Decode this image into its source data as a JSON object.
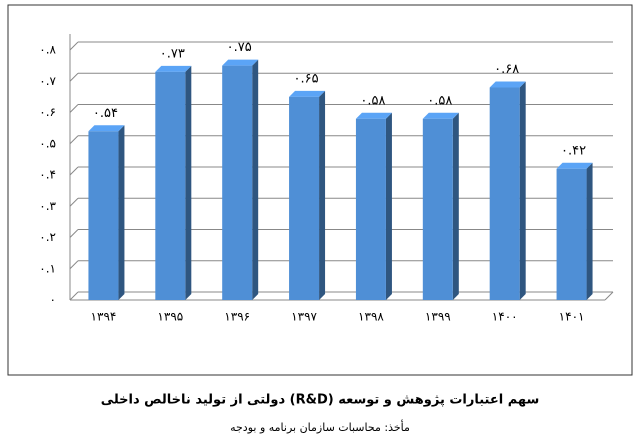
{
  "chart_data": {
    "type": "bar",
    "title": "سهم اعتبارات پژوهش و توسعه (R&D) دولتی از تولید ناخالص داخلی",
    "source": "مأخذ: محاسبات سازمان برنامه و بودجه",
    "categories": [
      "۱۳۹۴",
      "۱۳۹۵",
      "۱۳۹۶",
      "۱۳۹۷",
      "۱۳۹۸",
      "۱۳۹۹",
      "۱۴۰۰",
      "۱۴۰۱"
    ],
    "values": [
      0.54,
      0.73,
      0.75,
      0.65,
      0.58,
      0.58,
      0.68,
      0.42
    ],
    "value_labels": [
      "۰.۵۴",
      "۰.۷۳",
      "۰.۷۵",
      "۰.۶۵",
      "۰.۵۸",
      "۰.۵۸",
      "۰.۶۸",
      "۰.۴۲"
    ],
    "color": "#4f8fd6",
    "ylim": [
      0,
      0.8
    ],
    "yticks": [
      {
        "value": 0,
        "label": "۰"
      },
      {
        "value": 0.1,
        "label": "۰.۱"
      },
      {
        "value": 0.2,
        "label": "۰.۲"
      },
      {
        "value": 0.3,
        "label": "۰.۳"
      },
      {
        "value": 0.4,
        "label": "۰.۴"
      },
      {
        "value": 0.5,
        "label": "۰.۵"
      },
      {
        "value": 0.6,
        "label": "۰.۶"
      },
      {
        "value": 0.7,
        "label": "۰.۷"
      },
      {
        "value": 0.8,
        "label": "۰.۸"
      }
    ],
    "grid": true
  }
}
